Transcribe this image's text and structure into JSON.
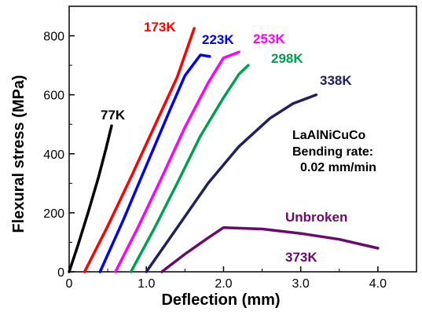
{
  "chart_data": {
    "type": "line",
    "xlabel": "Deflection (mm)",
    "ylabel": "Flexural stress (MPa)",
    "xlim": [
      0,
      4.5
    ],
    "ylim": [
      0,
      900
    ],
    "x_ticks": [
      "0",
      "1.0",
      "2.0",
      "3.0",
      "4.0"
    ],
    "x_tick_values": [
      0,
      1.0,
      2.0,
      3.0,
      4.0
    ],
    "y_ticks": [
      "0",
      "200",
      "400",
      "600",
      "800"
    ],
    "y_tick_values": [
      0,
      200,
      400,
      600,
      800
    ],
    "grid": false,
    "annotations": [
      "LaAlNiCuCo",
      "Bending rate:",
      "0.02 mm/min",
      "Unbroken"
    ],
    "series": [
      {
        "name": "77K",
        "color": "#000000",
        "x": [
          0.0,
          0.12,
          0.25,
          0.38,
          0.48,
          0.55
        ],
        "y": [
          0,
          95,
          205,
          320,
          420,
          495
        ]
      },
      {
        "name": "173K",
        "color": "#ff0000",
        "x": [
          0.2,
          0.5,
          0.8,
          1.1,
          1.4,
          1.62
        ],
        "y": [
          0,
          155,
          320,
          490,
          660,
          825
        ]
      },
      {
        "name": "223K",
        "color": "#0000ff",
        "x": [
          0.4,
          0.7,
          1.0,
          1.3,
          1.5,
          1.7,
          1.82
        ],
        "y": [
          0,
          175,
          360,
          545,
          665,
          735,
          730
        ]
      },
      {
        "name": "253K",
        "color": "#ff00ff",
        "x": [
          0.6,
          0.9,
          1.2,
          1.5,
          1.8,
          2.0,
          2.2
        ],
        "y": [
          0,
          155,
          320,
          490,
          640,
          725,
          745
        ]
      },
      {
        "name": "298K",
        "color": "#00a050",
        "x": [
          0.8,
          1.1,
          1.4,
          1.7,
          2.0,
          2.2,
          2.32
        ],
        "y": [
          0,
          145,
          300,
          460,
          590,
          670,
          700
        ]
      },
      {
        "name": "338K",
        "color": "#202060",
        "x": [
          1.0,
          1.4,
          1.8,
          2.2,
          2.6,
          2.9,
          3.2
        ],
        "y": [
          0,
          150,
          300,
          425,
          520,
          570,
          600
        ]
      },
      {
        "name": "373K",
        "color": "#6a0a6a",
        "x": [
          1.2,
          1.5,
          1.8,
          2.0,
          2.5,
          3.0,
          3.5,
          4.0
        ],
        "y": [
          0,
          60,
          115,
          150,
          145,
          130,
          110,
          80
        ]
      }
    ]
  }
}
